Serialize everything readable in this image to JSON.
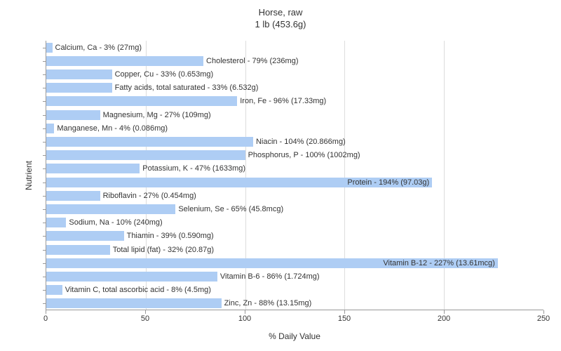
{
  "chart": {
    "type": "bar",
    "title_line1": "Horse, raw",
    "title_line2": "1 lb (453.6g)",
    "title_fontsize": 13,
    "x_axis_label": "% Daily Value",
    "y_axis_label": "Nutrient",
    "xlim": [
      0,
      250
    ],
    "x_ticks": [
      0,
      50,
      100,
      150,
      200,
      250
    ],
    "bar_color": "#aecdf4",
    "background_color": "#ffffff",
    "axis_color": "#999999",
    "grid_color": "#dddddd",
    "text_color": "#333333",
    "label_fontsize": 11,
    "axis_label_fontsize": 12,
    "nutrients": [
      {
        "label": "Calcium, Ca - 3% (27mg)",
        "value": 3
      },
      {
        "label": "Cholesterol - 79% (236mg)",
        "value": 79
      },
      {
        "label": "Copper, Cu - 33% (0.653mg)",
        "value": 33
      },
      {
        "label": "Fatty acids, total saturated - 33% (6.532g)",
        "value": 33
      },
      {
        "label": "Iron, Fe - 96% (17.33mg)",
        "value": 96
      },
      {
        "label": "Magnesium, Mg - 27% (109mg)",
        "value": 27
      },
      {
        "label": "Manganese, Mn - 4% (0.086mg)",
        "value": 4
      },
      {
        "label": "Niacin - 104% (20.866mg)",
        "value": 104
      },
      {
        "label": "Phosphorus, P - 100% (1002mg)",
        "value": 100
      },
      {
        "label": "Potassium, K - 47% (1633mg)",
        "value": 47
      },
      {
        "label": "Protein - 194% (97.03g)",
        "value": 194
      },
      {
        "label": "Riboflavin - 27% (0.454mg)",
        "value": 27
      },
      {
        "label": "Selenium, Se - 65% (45.8mcg)",
        "value": 65
      },
      {
        "label": "Sodium, Na - 10% (240mg)",
        "value": 10
      },
      {
        "label": "Thiamin - 39% (0.590mg)",
        "value": 39
      },
      {
        "label": "Total lipid (fat) - 32% (20.87g)",
        "value": 32
      },
      {
        "label": "Vitamin B-12 - 227% (13.61mcg)",
        "value": 227
      },
      {
        "label": "Vitamin B-6 - 86% (1.724mg)",
        "value": 86
      },
      {
        "label": "Vitamin C, total ascorbic acid - 8% (4.5mg)",
        "value": 8
      },
      {
        "label": "Zinc, Zn - 88% (13.15mg)",
        "value": 88
      }
    ]
  }
}
